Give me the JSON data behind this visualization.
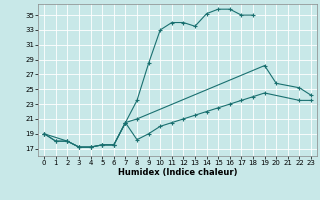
{
  "xlabel": "Humidex (Indice chaleur)",
  "bg_color": "#c8e8e8",
  "line_color": "#1a7070",
  "grid_color": "#ffffff",
  "xlim": [
    -0.5,
    23.5
  ],
  "ylim": [
    16.0,
    36.5
  ],
  "yticks": [
    17,
    19,
    21,
    23,
    25,
    27,
    29,
    31,
    33,
    35
  ],
  "xticks": [
    0,
    1,
    2,
    3,
    4,
    5,
    6,
    7,
    8,
    9,
    10,
    11,
    12,
    13,
    14,
    15,
    16,
    17,
    18,
    19,
    20,
    21,
    22,
    23
  ],
  "curve1_x": [
    0,
    1,
    2,
    3,
    4,
    5,
    6,
    7,
    8,
    9,
    10,
    11,
    12,
    13,
    14,
    15,
    16,
    17,
    18
  ],
  "curve1_y": [
    19.0,
    18.0,
    18.0,
    17.2,
    17.2,
    17.5,
    17.5,
    20.5,
    23.5,
    28.5,
    33.0,
    34.0,
    34.0,
    33.5,
    35.2,
    35.8,
    35.8,
    35.0,
    35.0
  ],
  "curve2_x": [
    0,
    1,
    2,
    3,
    4,
    5,
    6,
    7,
    8,
    19,
    20,
    22,
    23
  ],
  "curve2_y": [
    19.0,
    18.0,
    18.0,
    17.2,
    17.2,
    17.5,
    17.5,
    20.5,
    21.0,
    28.2,
    25.8,
    25.2,
    24.2
  ],
  "curve3_x": [
    0,
    2,
    3,
    4,
    5,
    6,
    7,
    8,
    9,
    10,
    11,
    12,
    13,
    14,
    15,
    16,
    17,
    18,
    19,
    22,
    23
  ],
  "curve3_y": [
    19.0,
    18.0,
    17.2,
    17.2,
    17.5,
    17.5,
    20.5,
    18.2,
    19.0,
    20.0,
    20.5,
    21.0,
    21.5,
    22.0,
    22.5,
    23.0,
    23.5,
    24.0,
    24.5,
    23.5,
    23.5
  ],
  "xlabel_fontsize": 6,
  "tick_fontsize": 5.0,
  "linewidth": 0.8,
  "markersize": 3,
  "markeredgewidth": 0.8
}
